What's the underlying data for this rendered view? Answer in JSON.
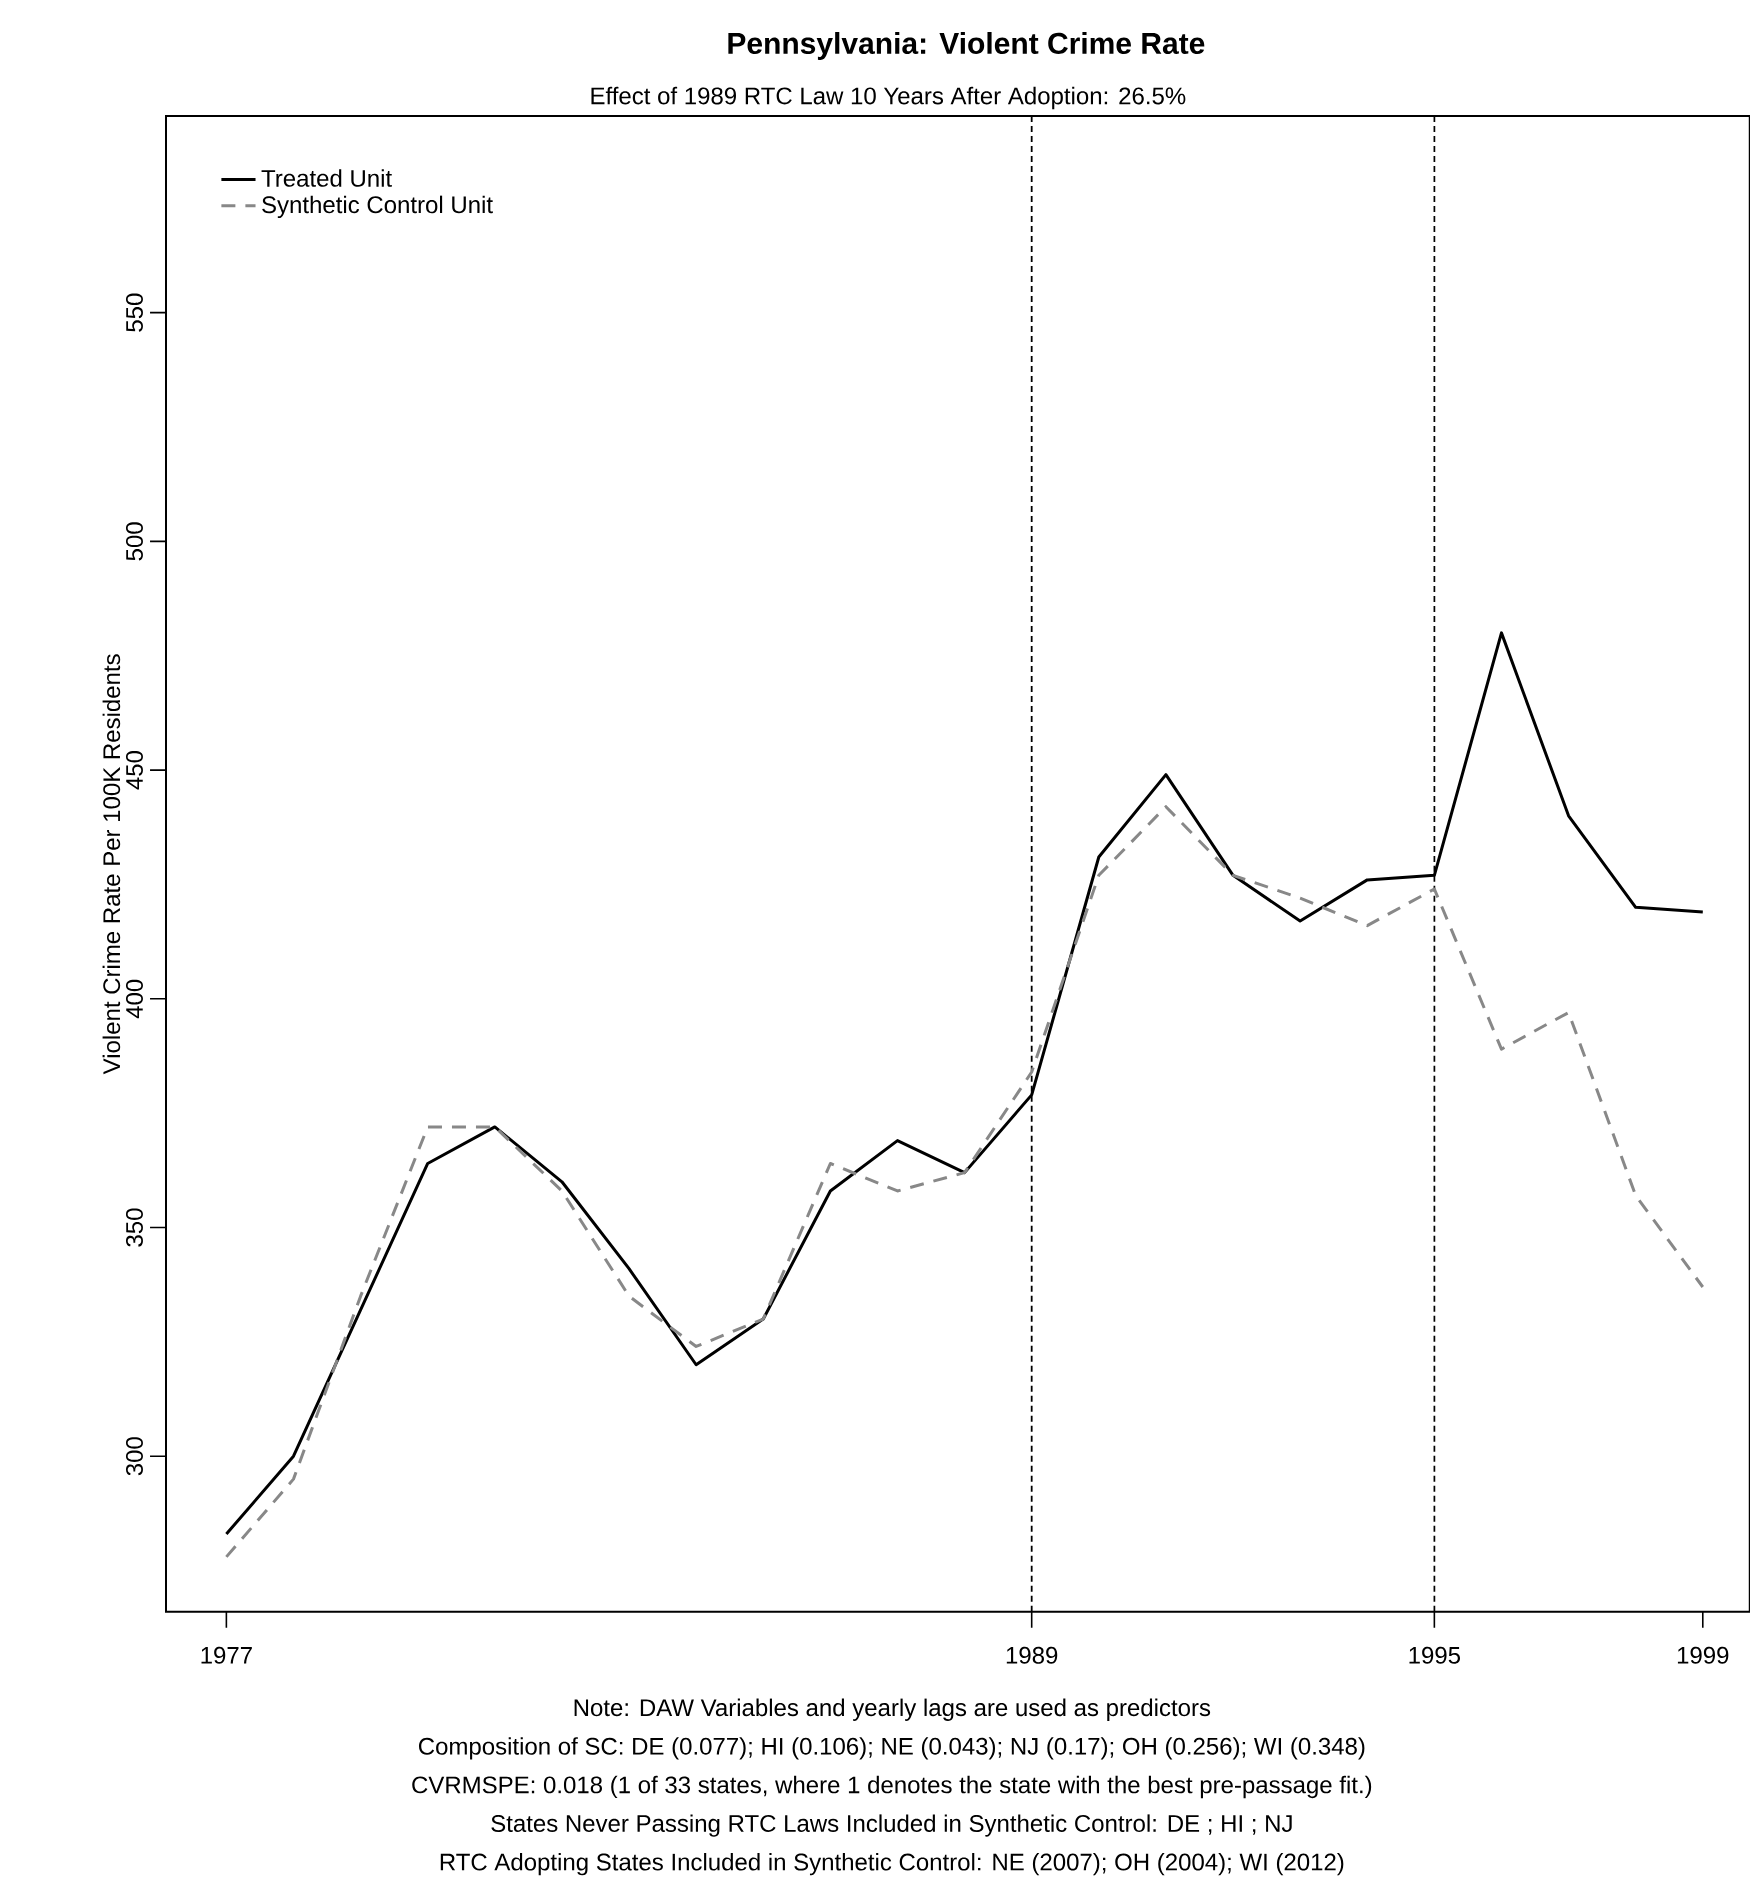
{
  "chart_data": {
    "type": "line",
    "title": "Pennsylvania: Violent Crime Rate",
    "subtitle": "Effect of 1989 RTC Law 10 Years After Adoption: 26.5%",
    "ylabel": "Violent Crime Rate Per 100K Residents",
    "x": [
      1977,
      1978,
      1979,
      1980,
      1981,
      1982,
      1983,
      1984,
      1985,
      1986,
      1987,
      1988,
      1989,
      1990,
      1991,
      1992,
      1993,
      1994,
      1995,
      1996,
      1997,
      1998,
      1999
    ],
    "series": [
      {
        "name": "Treated Unit",
        "color": "#000000",
        "line_style": "solid",
        "values": [
          283,
          300,
          332,
          364,
          372,
          360,
          341,
          320,
          330,
          358,
          369,
          362,
          379,
          431,
          449,
          427,
          417,
          426,
          427,
          480,
          440,
          420,
          419
        ]
      },
      {
        "name": "Synthetic Control Unit",
        "color": "#888888",
        "line_style": "dashed",
        "values": [
          278,
          295,
          335,
          372,
          372,
          358,
          335,
          324,
          330,
          364,
          358,
          362,
          384,
          427,
          442,
          427,
          422,
          416,
          424,
          389,
          397,
          357,
          337
        ]
      }
    ],
    "xlim": [
      1976.1,
      1999.7
    ],
    "ylim": [
      266,
      593
    ],
    "xticks": [
      1977,
      1989,
      1995,
      1999
    ],
    "yticks": [
      300,
      350,
      400,
      450,
      500,
      550
    ],
    "ref_lines": [
      {
        "axis": "x",
        "value": 1989,
        "color": "#000000",
        "line_style": "dashed"
      },
      {
        "axis": "x",
        "value": 1995,
        "color": "#000000",
        "line_style": "dashed"
      }
    ],
    "legend": "top left",
    "grid": false,
    "annotations": [
      "Note: DAW Variables and yearly lags are used as predictors",
      "Composition of SC: DE (0.077); HI (0.106); NE (0.043); NJ (0.17); OH (0.256); WI (0.348)",
      "CVRMSPE: 0.018 (1 of 33 states, where 1 denotes the state with the best pre-passage fit.)",
      "States Never Passing RTC Laws Included in Synthetic Control:  DE ; HI ; NJ",
      "RTC Adopting States Included in Synthetic Control:  NE (2007); OH (2004); WI (2012)"
    ]
  }
}
